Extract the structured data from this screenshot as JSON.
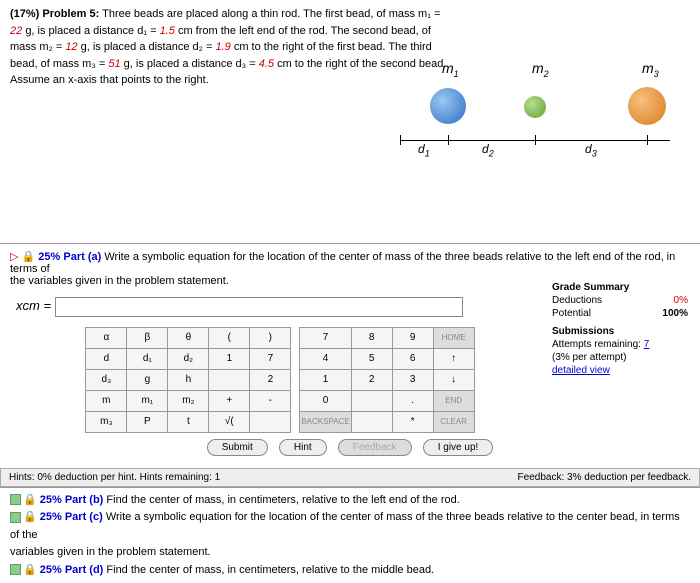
{
  "problem": {
    "title": "(17%) Problem 5:",
    "intro": "Three beads are placed along a thin rod. The first bead, of mass m₁ =",
    "m1": "22",
    "m1_unit": "g, is placed a distance d₁ =",
    "d1": "1.5",
    "d1_unit": "cm from the left end of the rod. The second bead, of",
    "line2a": "mass m₂ =",
    "m2": "12",
    "line2b": "g, is placed a distance d₂ =",
    "d2": "1.9",
    "line2c": "cm to the right of the first bead. The third",
    "line3a": "bead, of mass m₃ =",
    "m3": "51",
    "line3b": "g, is placed a distance d₃ =",
    "d3": "4.5",
    "line3c": "cm to the right of the second bead.",
    "line4": "Assume an x-axis that points to the right."
  },
  "diagram": {
    "labels": {
      "m1": "m",
      "m2": "m",
      "m3": "m",
      "sub1": "1",
      "sub2": "2",
      "sub3": "3",
      "d1": "d",
      "d2": "d",
      "d3": "d"
    },
    "colors": {
      "m1": "#3a7cd4",
      "m2": "#6fae3f",
      "m3": "#e8892c",
      "line": "#000"
    },
    "sizes": {
      "m1": 36,
      "m2": 22,
      "m3": 38
    }
  },
  "part_a": {
    "icon": "▷",
    "lock": "🔒",
    "pct": "25% Part (a)",
    "text": "Write a symbolic equation for the location of the center of mass of the three beads relative to the left end of the rod, in terms of",
    "text2": "the variables given in the problem statement.",
    "xcm": "xcm ="
  },
  "grade": {
    "title": "Grade Summary",
    "deductions": "Deductions",
    "ded_val": "0%",
    "potential": "Potential",
    "pot_val": "100%",
    "subs": "Submissions",
    "attempts": "Attempts remaining:",
    "att_val": "7",
    "per": "(3% per attempt)",
    "detail": "detailed view"
  },
  "symbols": [
    [
      "α",
      "β",
      "θ",
      "(",
      ")"
    ],
    [
      "d",
      "d₁",
      "d₂",
      "1",
      "7"
    ],
    [
      "d₃",
      "g",
      "h",
      "",
      "2"
    ],
    [
      "m",
      "m₁",
      "m₂",
      "+",
      "-"
    ],
    [
      "m₃",
      "P",
      "t",
      "√(",
      ""
    ]
  ],
  "numpad": [
    [
      "7",
      "8",
      "9",
      "HOME"
    ],
    [
      "4",
      "5",
      "6",
      "↑"
    ],
    [
      "1",
      "2",
      "3",
      "↓"
    ],
    [
      "0",
      "",
      ".",
      "END"
    ],
    [
      "BACKSPACE",
      "",
      "*",
      "CLEAR"
    ]
  ],
  "buttons": {
    "submit": "Submit",
    "hint": "Hint",
    "fb": "Feedback",
    "give": "I give up!"
  },
  "hints": {
    "left": "Hints: 0% deduction per hint. Hints remaining: 1",
    "right": "Feedback: 3% deduction per feedback."
  },
  "parts": {
    "b": {
      "pct": "25% Part (b)",
      "text": "Find the center of mass, in centimeters, relative to the left end of the rod."
    },
    "c": {
      "pct": "25% Part (c)",
      "text": "Write a symbolic equation for the location of the center of mass of the three beads relative to the center bead, in terms of the",
      "text2": "variables given in the problem statement."
    },
    "d": {
      "pct": "25% Part (d)",
      "text": "Find the center of mass, in centimeters, relative to the middle bead."
    }
  }
}
